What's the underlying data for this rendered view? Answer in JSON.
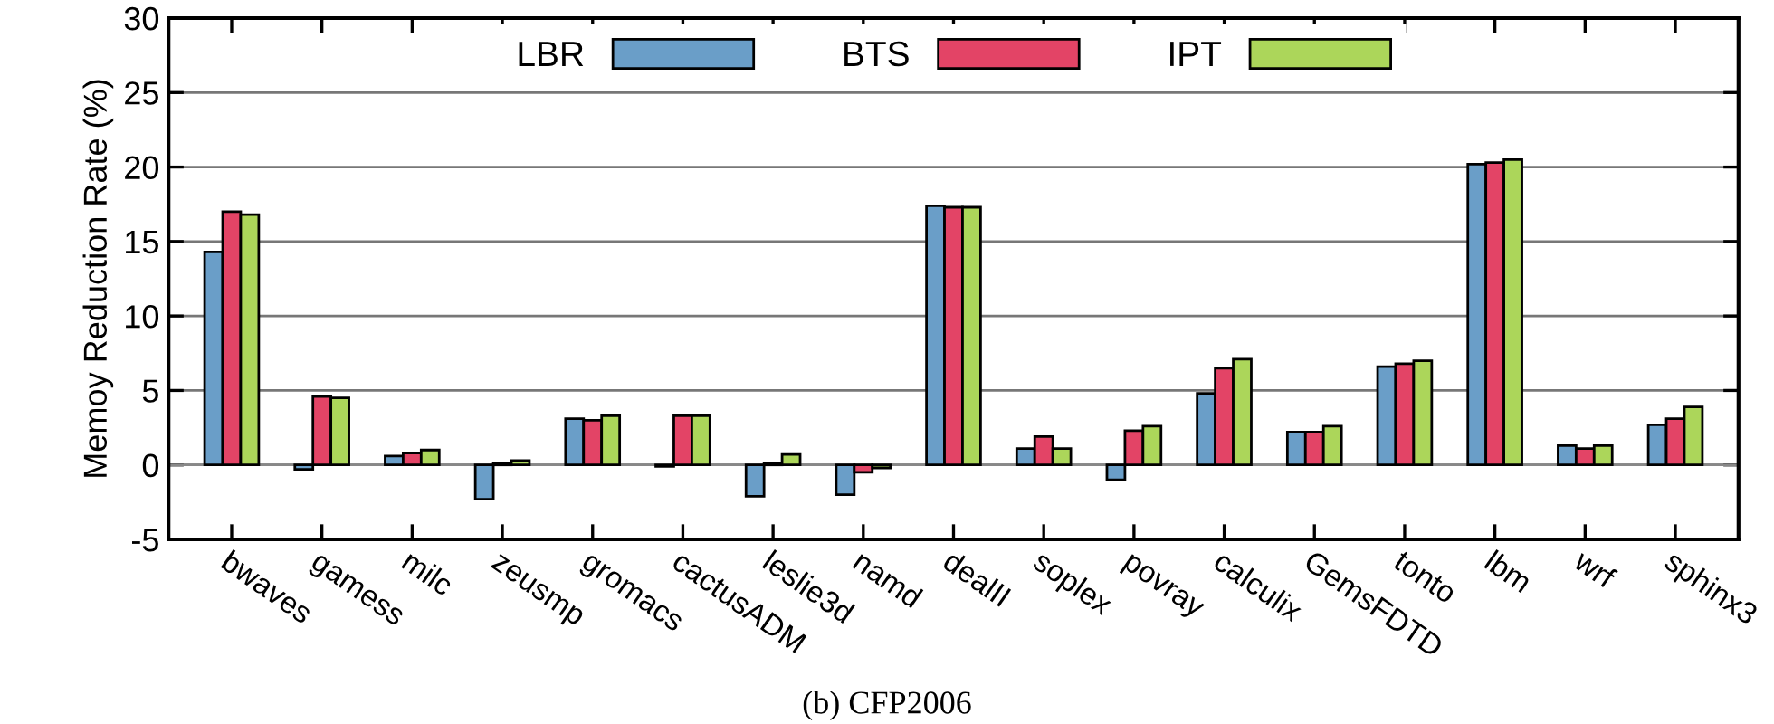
{
  "chart_data": {
    "type": "bar",
    "title": "(b) CFP2006",
    "ylabel": "Memoy Reduction Rate (%)",
    "categories": [
      "bwaves",
      "gamess",
      "milc",
      "zeusmp",
      "gromacs",
      "cactusADM",
      "leslie3d",
      "namd",
      "dealII",
      "soplex",
      "povray",
      "calculix",
      "GemsFDTD",
      "tonto",
      "lbm",
      "wrf",
      "sphinx3"
    ],
    "series": [
      {
        "name": "LBR",
        "color": "#6a9ec8",
        "values": [
          14.3,
          -0.3,
          0.6,
          -2.3,
          3.1,
          -0.1,
          -2.1,
          -2.0,
          17.4,
          1.1,
          -1.0,
          4.8,
          2.2,
          6.6,
          20.2,
          1.3,
          2.7
        ]
      },
      {
        "name": "BTS",
        "color": "#e34466",
        "values": [
          17.0,
          4.6,
          0.8,
          0.1,
          3.0,
          3.3,
          0.1,
          -0.5,
          17.3,
          1.9,
          2.3,
          6.5,
          2.2,
          6.8,
          20.3,
          1.1,
          3.1
        ]
      },
      {
        "name": "IPT",
        "color": "#acd65a",
        "values": [
          16.8,
          4.5,
          1.0,
          0.3,
          3.3,
          3.3,
          0.7,
          -0.2,
          17.3,
          1.1,
          2.6,
          7.1,
          2.6,
          7.0,
          20.5,
          1.3,
          3.9
        ]
      }
    ],
    "ylim": [
      -5,
      30
    ],
    "yticks": [
      -5,
      0,
      5,
      10,
      15,
      20,
      25,
      30
    ],
    "grid": "y",
    "legend": "top"
  }
}
